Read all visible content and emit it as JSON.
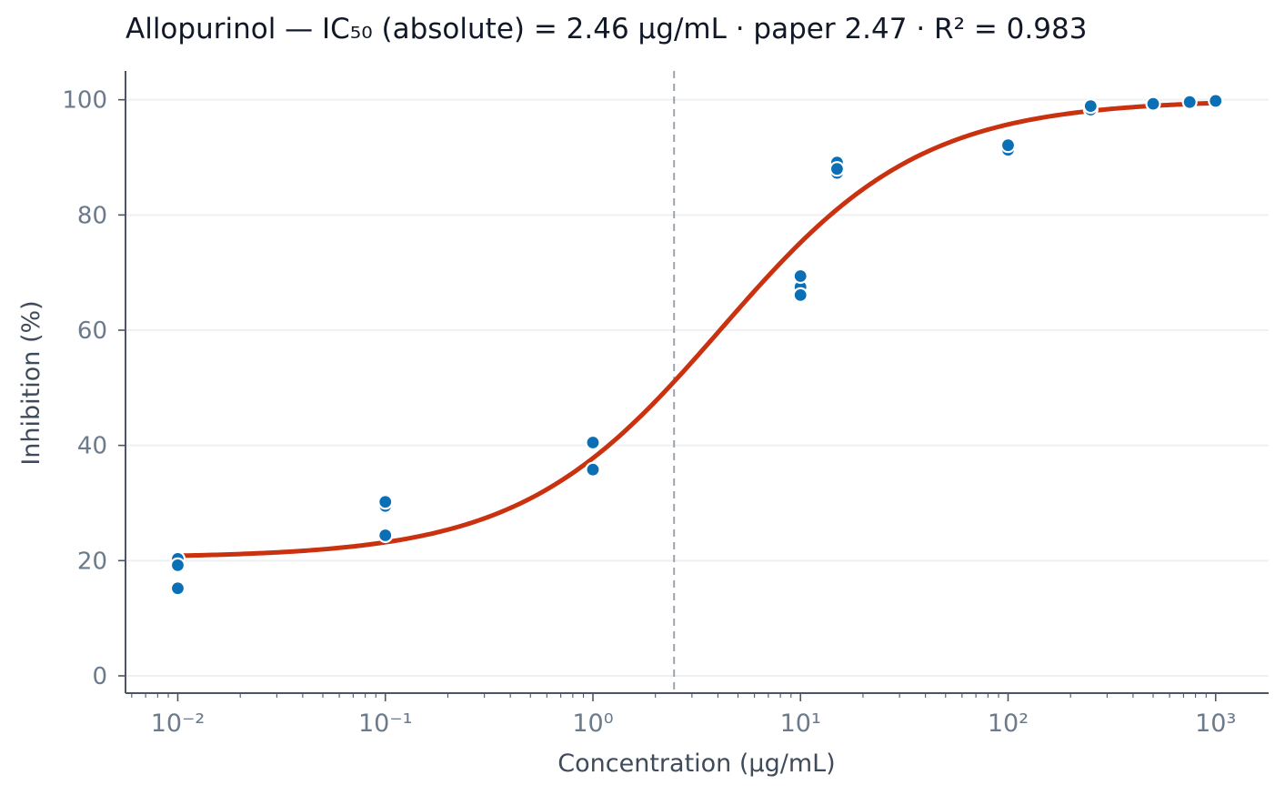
{
  "colors": {
    "curve": "#c9310f",
    "points": "#0a6fb5",
    "point_edge": "#ffffff",
    "axis": "#4b5563",
    "tick_label": "#6b7a8c",
    "axis_label": "#3f4a5a",
    "grid": "#eef0f2",
    "ic50_line": "#9ca3af"
  },
  "chart_data": {
    "type": "scatter",
    "title": "Allopurinol — IC₅₀ (absolute) = 2.46 µg/mL · paper 2.47 · R² = 0.983",
    "xlabel": "Concentration (µg/mL)",
    "ylabel": "Inhibition (%)",
    "xscale": "log",
    "xlim": [
      0.0056,
      1800
    ],
    "ylim": [
      -3,
      105
    ],
    "grid": "horizontal",
    "x_ticks": [
      0.01,
      0.1,
      1,
      10,
      100,
      1000
    ],
    "x_tick_labels": [
      "10⁻²",
      "10⁻¹",
      "10⁰",
      "10¹",
      "10²",
      "10³"
    ],
    "y_ticks": [
      0,
      20,
      40,
      60,
      80,
      100
    ],
    "y_tick_labels": [
      "0",
      "20",
      "40",
      "60",
      "80",
      "100"
    ],
    "ic50": 2.46,
    "points": [
      {
        "x": 0.01,
        "y": 20.3
      },
      {
        "x": 0.01,
        "y": 19.2
      },
      {
        "x": 0.01,
        "y": 15.2
      },
      {
        "x": 0.1,
        "y": 29.5
      },
      {
        "x": 0.1,
        "y": 30.2
      },
      {
        "x": 0.1,
        "y": 24.4
      },
      {
        "x": 1,
        "y": 40.5
      },
      {
        "x": 1,
        "y": 35.8
      },
      {
        "x": 10,
        "y": 67.5
      },
      {
        "x": 10,
        "y": 69.4
      },
      {
        "x": 10,
        "y": 66.1
      },
      {
        "x": 15,
        "y": 89.1
      },
      {
        "x": 15,
        "y": 87.3
      },
      {
        "x": 15,
        "y": 88.0
      },
      {
        "x": 100,
        "y": 91.3
      },
      {
        "x": 100,
        "y": 92.1
      },
      {
        "x": 250,
        "y": 98.3
      },
      {
        "x": 250,
        "y": 98.9
      },
      {
        "x": 500,
        "y": 99.3
      },
      {
        "x": 750,
        "y": 99.6
      },
      {
        "x": 1000,
        "y": 99.8
      }
    ],
    "fit": {
      "model": "four-parameter logistic",
      "bottom": 20.5,
      "top": 100,
      "ec50": 4.15,
      "hill": 0.9,
      "x_range": [
        0.01,
        1000
      ]
    }
  }
}
